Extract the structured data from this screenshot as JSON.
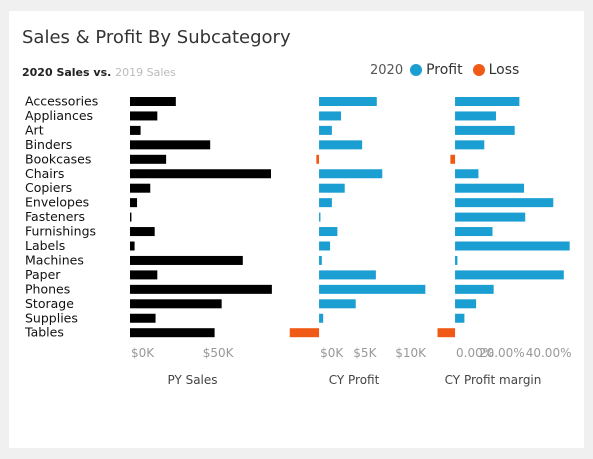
{
  "title": "Sales & Profit By Subcategory",
  "subtitle": {
    "current": "2020 Sales",
    "vs": " vs. ",
    "prior": "2019 Sales"
  },
  "legend": {
    "year": "2020",
    "items": [
      {
        "label": "Profit",
        "color": "#1b9ed1"
      },
      {
        "label": "Loss",
        "color": "#f05a16"
      }
    ]
  },
  "colors": {
    "sales": "#000000",
    "profit": "#1b9ed1",
    "loss": "#f05a16"
  },
  "chart_data": [
    {
      "type": "bar",
      "orientation": "horizontal",
      "title": "PY Sales",
      "categories": [
        "Accessories",
        "Appliances",
        "Art",
        "Binders",
        "Bookcases",
        "Chairs",
        "Copiers",
        "Envelopes",
        "Fasteners",
        "Furnishings",
        "Labels",
        "Machines",
        "Paper",
        "Phones",
        "Storage",
        "Supplies",
        "Tables"
      ],
      "values": [
        26000,
        15500,
        6000,
        45500,
        20500,
        80000,
        11500,
        4000,
        800,
        14000,
        2600,
        64000,
        15500,
        80500,
        52000,
        14500,
        48000
      ],
      "xlim": [
        0,
        80000
      ],
      "ticks": [
        {
          "value": 0,
          "label": "$0K"
        },
        {
          "value": 50000,
          "label": "$50K"
        }
      ]
    },
    {
      "type": "bar",
      "orientation": "horizontal",
      "title": "CY Profit",
      "categories": [
        "Accessories",
        "Appliances",
        "Art",
        "Binders",
        "Bookcases",
        "Chairs",
        "Copiers",
        "Envelopes",
        "Fasteners",
        "Furnishings",
        "Labels",
        "Machines",
        "Paper",
        "Phones",
        "Storage",
        "Supplies",
        "Tables"
      ],
      "values": [
        6300,
        2400,
        1400,
        4700,
        -300,
        6900,
        2800,
        1400,
        150,
        2000,
        1200,
        300,
        6200,
        11600,
        4000,
        450,
        -3200
      ],
      "xlim": [
        -3500,
        12000
      ],
      "ticks": [
        {
          "value": 0,
          "label": "$0K"
        },
        {
          "value": 5000,
          "label": "$5K"
        },
        {
          "value": 10000,
          "label": "$10K"
        }
      ]
    },
    {
      "type": "bar",
      "orientation": "horizontal",
      "title": "CY Profit margin",
      "categories": [
        "Accessories",
        "Appliances",
        "Art",
        "Binders",
        "Bookcases",
        "Chairs",
        "Copiers",
        "Envelopes",
        "Fasteners",
        "Furnishings",
        "Labels",
        "Machines",
        "Paper",
        "Phones",
        "Storage",
        "Supplies",
        "Tables"
      ],
      "values": [
        0.275,
        0.175,
        0.255,
        0.125,
        -0.02,
        0.1,
        0.295,
        0.42,
        0.3,
        0.16,
        0.49,
        0.01,
        0.465,
        0.165,
        0.09,
        0.04,
        -0.075
      ],
      "xlim": [
        -0.09,
        0.5
      ],
      "ticks": [
        {
          "value": 0,
          "label": "0.00%"
        },
        {
          "value": 0.2,
          "label": "20.00%"
        },
        {
          "value": 0.4,
          "label": "40.00%"
        }
      ]
    }
  ]
}
